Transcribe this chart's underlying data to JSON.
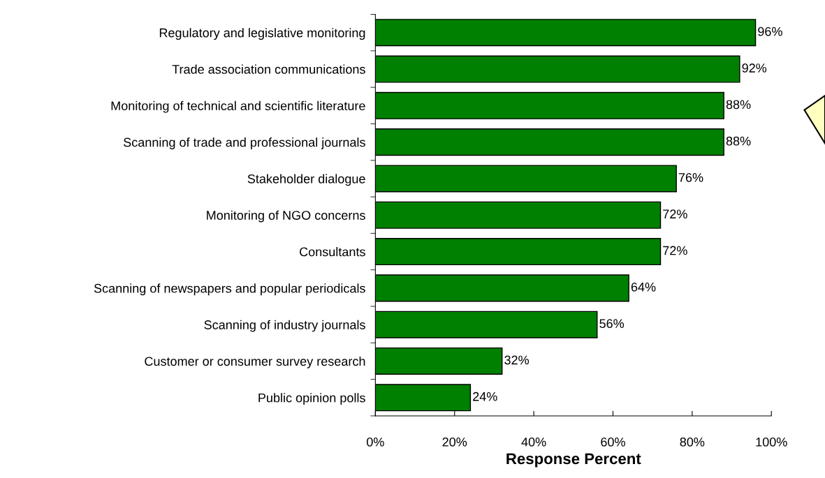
{
  "chart_data": {
    "type": "bar",
    "orientation": "horizontal",
    "xlabel": "Response Percent",
    "categories": [
      "Regulatory and legislative monitoring",
      "Trade association communications",
      "Monitoring of technical and scientific literature",
      "Scanning of trade and professional journals",
      "Stakeholder dialogue",
      "Monitoring of NGO concerns",
      "Consultants",
      "Scanning of newspapers and popular periodicals",
      "Scanning of industry journals",
      "Customer or consumer survey research",
      "Public opinion polls"
    ],
    "values": [
      96,
      92,
      88,
      88,
      76,
      72,
      72,
      64,
      56,
      32,
      24
    ],
    "value_labels": [
      "96%",
      "92%",
      "88%",
      "88%",
      "76%",
      "72%",
      "72%",
      "64%",
      "56%",
      "32%",
      "24%"
    ],
    "color": "#008000",
    "xlim": [
      0,
      100
    ],
    "xticks": [
      {
        "value": 0,
        "label": "0%"
      },
      {
        "value": 20,
        "label": "20%"
      },
      {
        "value": 40,
        "label": "40%"
      },
      {
        "value": 60,
        "label": "60%"
      },
      {
        "value": 80,
        "label": "80%"
      },
      {
        "value": 100,
        "label": "100%"
      }
    ],
    "grid": false,
    "legend": false
  }
}
